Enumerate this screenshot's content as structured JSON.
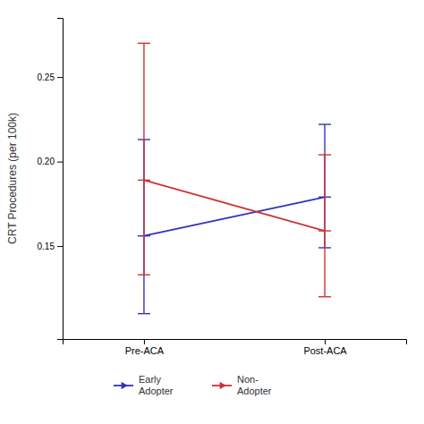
{
  "chart_data": {
    "type": "line",
    "categories": [
      "Pre-ACA",
      "Post-ACA"
    ],
    "ylabel": "CRT Procedures (per 100k)",
    "ylim": [
      0.095,
      0.285
    ],
    "yticks": [
      0.15,
      {
        "value": 0.2,
        "label": "0.20"
      },
      0.25
    ],
    "grid": false,
    "legend": "bottom",
    "series": [
      {
        "name": "Early\nAdopter",
        "color": "#3333BB",
        "values": [
          0.156,
          0.179
        ],
        "ci_low": [
          0.11,
          0.149
        ],
        "ci_high": [
          0.213,
          0.222
        ]
      },
      {
        "name": "Non-\nAdopter",
        "color": "#CC3333",
        "values": [
          0.189,
          0.159
        ],
        "ci_low": [
          0.133,
          0.12
        ],
        "ci_high": [
          0.27,
          0.204
        ]
      }
    ]
  }
}
